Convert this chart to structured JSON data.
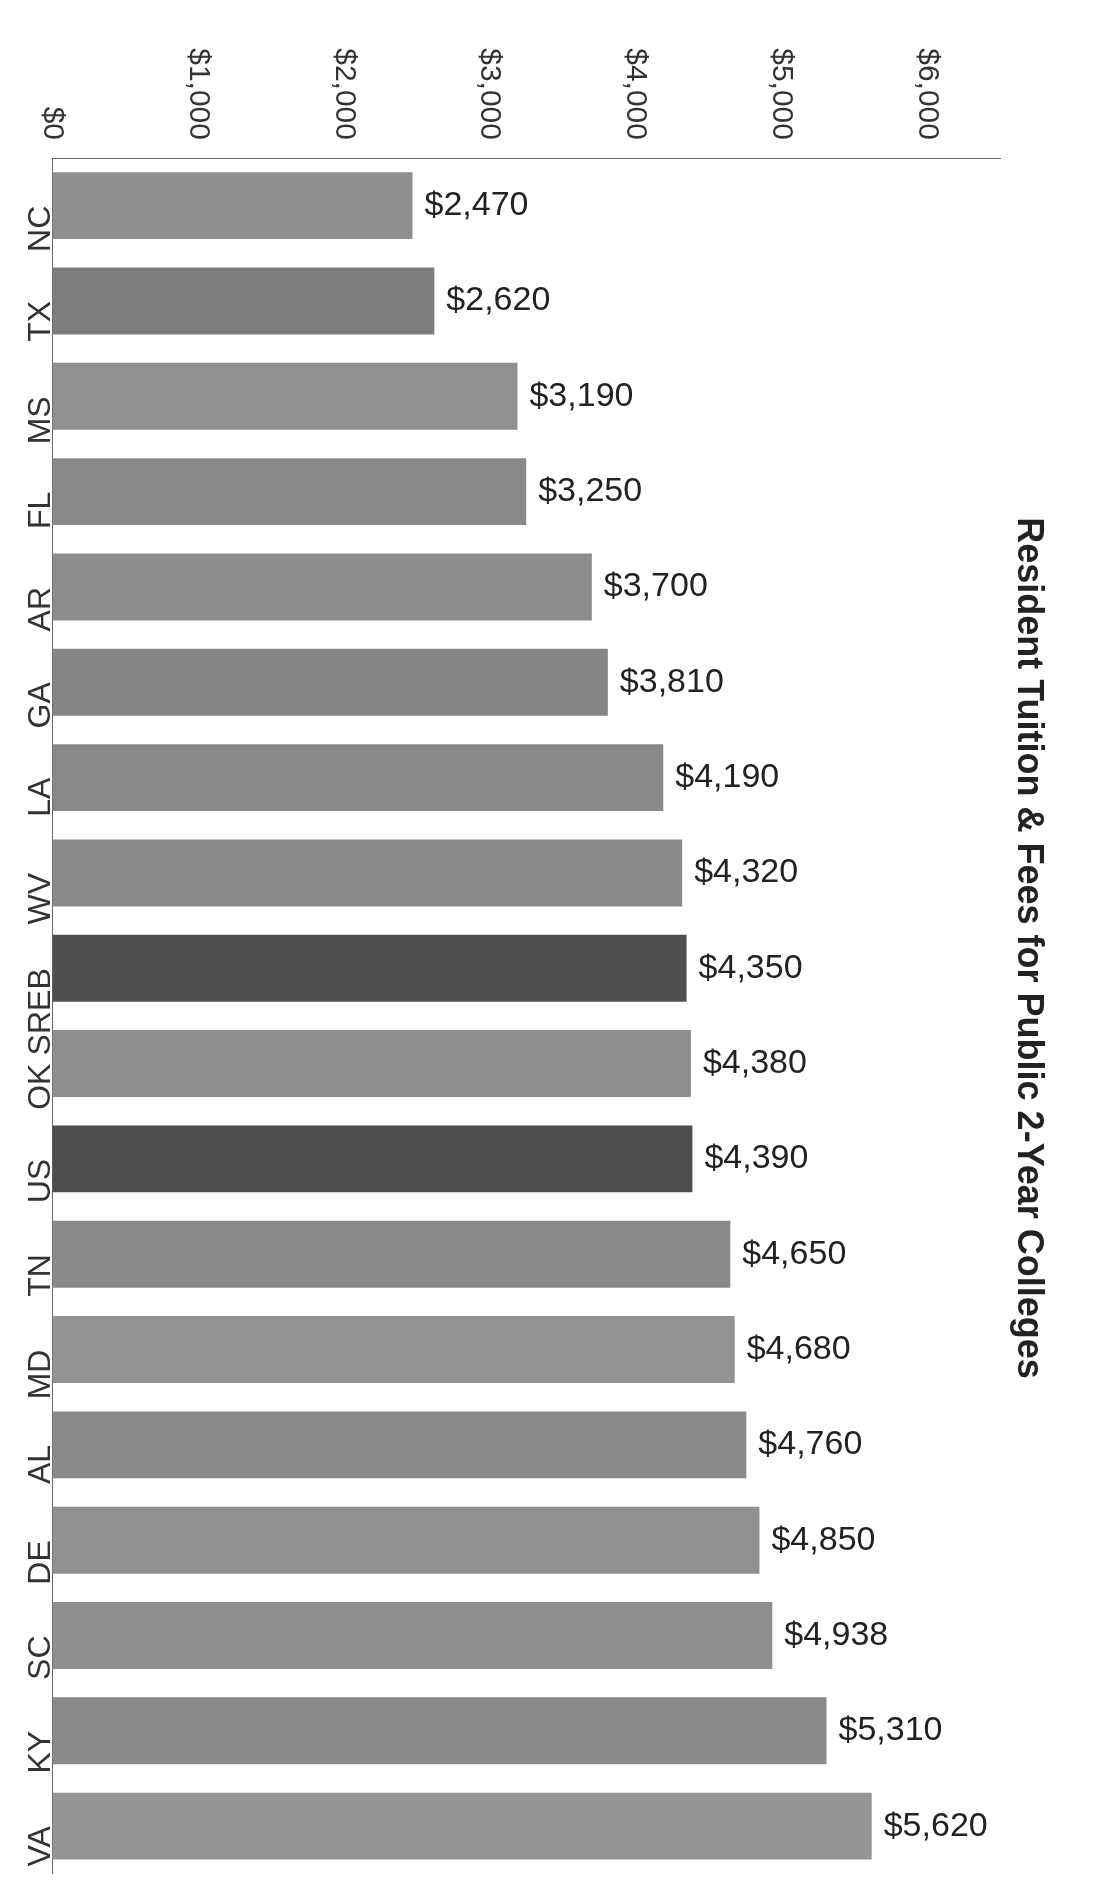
{
  "chart_data": {
    "type": "bar",
    "orientation": "horizontal",
    "title": "Resident Tuition & Fees for Public 2-Year Colleges",
    "categories": [
      "NC",
      "TX",
      "MS",
      "FL",
      "AR",
      "GA",
      "LA",
      "WV",
      "SREB",
      "OK",
      "US",
      "TN",
      "MD",
      "AL",
      "DE",
      "SC",
      "KY",
      "VA"
    ],
    "values": [
      2470,
      2620,
      3190,
      3250,
      3700,
      3810,
      4190,
      4320,
      4350,
      4380,
      4390,
      4650,
      4680,
      4760,
      4850,
      4938,
      5310,
      5620
    ],
    "value_labels": [
      "$2,470",
      "$2,620",
      "$3,190",
      "$3,250",
      "$3,700",
      "$3,810",
      "$4,190",
      "$4,320",
      "$4,350",
      "$4,380",
      "$4,390",
      "$4,650",
      "$4,680",
      "$4,760",
      "$4,850",
      "$4,938",
      "$5,310",
      "$5,620"
    ],
    "colors": [
      "#8f8f8f",
      "#7d7d7d",
      "#909090",
      "#8a8a8a",
      "#8c8c8c",
      "#858585",
      "#888888",
      "#8a8a8a",
      "#505050",
      "#8f8f8f",
      "#4c4c4c",
      "#8a8a8a",
      "#939393",
      "#8a8a8a",
      "#909090",
      "#8e8e8e",
      "#8a8a8a",
      "#959595"
    ],
    "xlim": [
      0,
      6500
    ],
    "xticks": [
      {
        "value": 0,
        "label": "$0"
      },
      {
        "value": 1000,
        "label": "$1,000"
      },
      {
        "value": 2000,
        "label": "$2,000"
      },
      {
        "value": 3000,
        "label": "$3,000"
      },
      {
        "value": 4000,
        "label": "$4,000"
      },
      {
        "value": 5000,
        "label": "$5,000"
      },
      {
        "value": 6000,
        "label": "$6,000"
      }
    ],
    "grid": false,
    "legend": false
  }
}
